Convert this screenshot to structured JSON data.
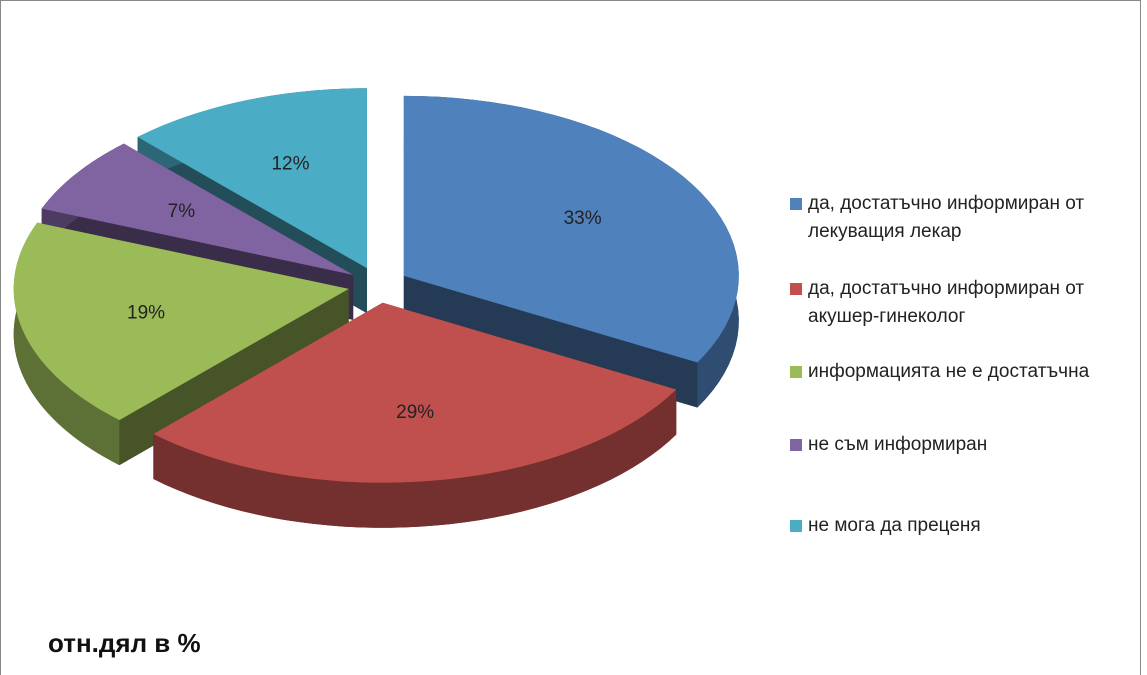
{
  "chart_data": {
    "type": "pie",
    "title": "отн.дял в %",
    "categories": [
      "да, достатъчно информиран от лекуващия лекар",
      "да, достатъчно информиран от акушер-гинеколог",
      "информацията не е достатъчна",
      "не съм информиран",
      "не мога да преценя"
    ],
    "values": [
      33,
      29,
      19,
      7,
      12
    ],
    "value_labels": [
      "33%",
      "29%",
      "19%",
      "7%",
      "12%"
    ],
    "colors": [
      "#4f81bd",
      "#c0504d",
      "#9bbb59",
      "#8064a2",
      "#4bacc6"
    ],
    "legend": "right"
  }
}
